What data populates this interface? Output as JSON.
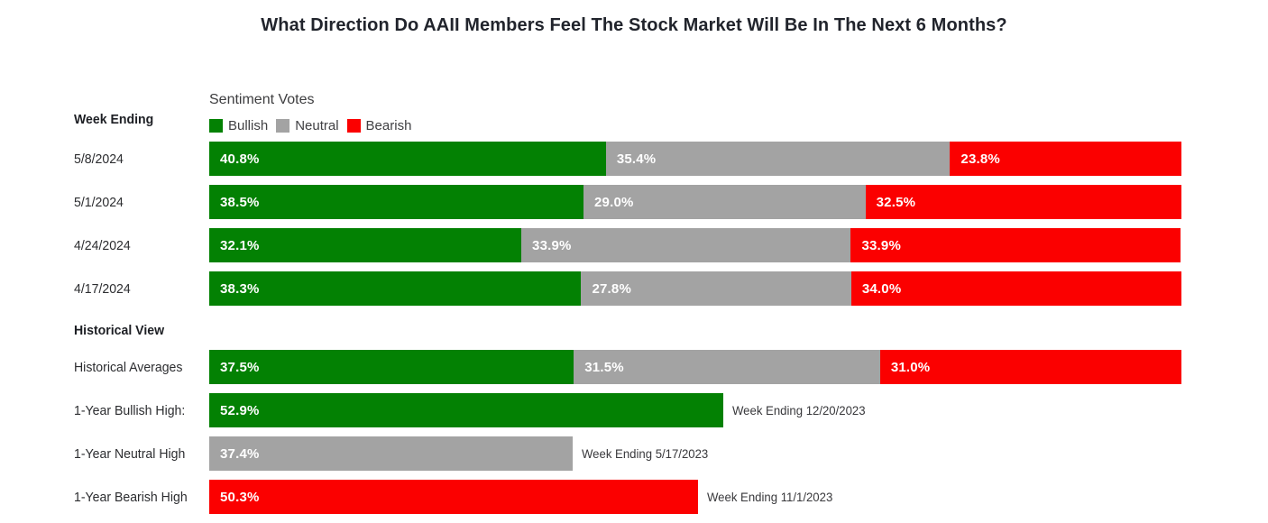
{
  "title": "What Direction Do AAII Members Feel The Stock Market Will Be In The Next 6 Months?",
  "header": {
    "week_ending_label": "Week Ending",
    "sentiment_votes_label": "Sentiment Votes",
    "historical_view_label": "Historical View"
  },
  "legend": [
    {
      "label": "Bullish",
      "color_key": "bullish"
    },
    {
      "label": "Neutral",
      "color_key": "neutral"
    },
    {
      "label": "Bearish",
      "color_key": "bearish"
    }
  ],
  "colors": {
    "bullish": "#038103",
    "neutral": "#a3a3a3",
    "bearish": "#fb0000"
  },
  "chart_data": {
    "type": "bar",
    "orientation": "horizontal",
    "stacked": true,
    "x_range_percent": [
      0,
      100
    ],
    "legend_position": "top",
    "series_names": [
      "Bullish",
      "Neutral",
      "Bearish"
    ],
    "weekly_rows": [
      {
        "label": "5/8/2024",
        "bullish": 40.8,
        "neutral": 35.4,
        "bearish": 23.8,
        "bullish_text": "40.8%",
        "neutral_text": "35.4%",
        "bearish_text": "23.8%"
      },
      {
        "label": "5/1/2024",
        "bullish": 38.5,
        "neutral": 29.0,
        "bearish": 32.5,
        "bullish_text": "38.5%",
        "neutral_text": "29.0%",
        "bearish_text": "32.5%"
      },
      {
        "label": "4/24/2024",
        "bullish": 32.1,
        "neutral": 33.9,
        "bearish": 33.9,
        "bullish_text": "32.1%",
        "neutral_text": "33.9%",
        "bearish_text": "33.9%"
      },
      {
        "label": "4/17/2024",
        "bullish": 38.3,
        "neutral": 27.8,
        "bearish": 34.0,
        "bullish_text": "38.3%",
        "neutral_text": "27.8%",
        "bearish_text": "34.0%"
      }
    ],
    "historical_rows": [
      {
        "label": "Historical Averages",
        "bullish": 37.5,
        "neutral": 31.5,
        "bearish": 31.0,
        "bullish_text": "37.5%",
        "neutral_text": "31.5%",
        "bearish_text": "31.0%"
      },
      {
        "label": "1-Year Bullish High:",
        "series": "bullish",
        "value": 52.9,
        "value_text": "52.9%",
        "annotation": "Week Ending 12/20/2023"
      },
      {
        "label": "1-Year Neutral High",
        "series": "neutral",
        "value": 37.4,
        "value_text": "37.4%",
        "annotation": "Week Ending 5/17/2023"
      },
      {
        "label": "1-Year Bearish High",
        "series": "bearish",
        "value": 50.3,
        "value_text": "50.3%",
        "annotation": "Week Ending 11/1/2023"
      }
    ]
  }
}
